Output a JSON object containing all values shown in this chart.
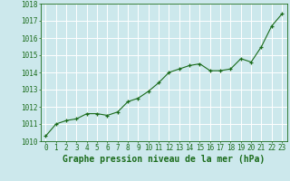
{
  "x": [
    0,
    1,
    2,
    3,
    4,
    5,
    6,
    7,
    8,
    9,
    10,
    11,
    12,
    13,
    14,
    15,
    16,
    17,
    18,
    19,
    20,
    21,
    22,
    23
  ],
  "y": [
    1010.3,
    1011.0,
    1011.2,
    1011.3,
    1011.6,
    1011.6,
    1011.5,
    1011.7,
    1012.3,
    1012.5,
    1012.9,
    1013.4,
    1014.0,
    1014.2,
    1014.4,
    1014.5,
    1014.1,
    1014.1,
    1014.2,
    1014.8,
    1014.6,
    1015.5,
    1016.7,
    1017.4
  ],
  "ylim": [
    1010,
    1018
  ],
  "yticks": [
    1010,
    1011,
    1012,
    1013,
    1014,
    1015,
    1016,
    1017,
    1018
  ],
  "xticks": [
    0,
    1,
    2,
    3,
    4,
    5,
    6,
    7,
    8,
    9,
    10,
    11,
    12,
    13,
    14,
    15,
    16,
    17,
    18,
    19,
    20,
    21,
    22,
    23
  ],
  "xlabel": "Graphe pression niveau de la mer (hPa)",
  "line_color": "#1a6b1a",
  "marker_color": "#1a6b1a",
  "bg_color": "#cce8ec",
  "grid_color": "#ffffff",
  "axis_color": "#1a6b1a",
  "text_color": "#1a6b1a",
  "tick_fontsize": 5.5,
  "xlabel_fontsize": 7.0
}
